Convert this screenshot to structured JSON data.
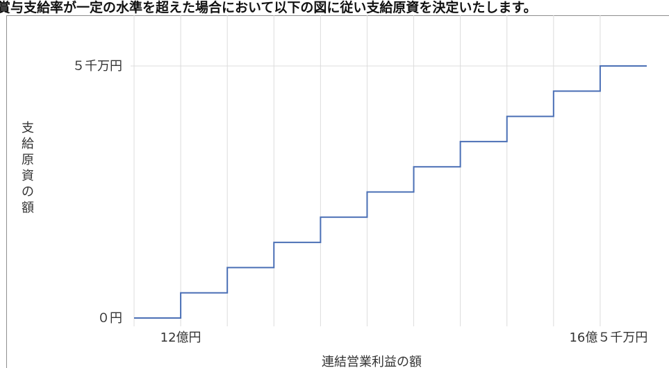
{
  "header_text": "賞与支給率が一定の水準を超えた場合において以下の図に従い支給原資を決定いたします。",
  "chart_data": {
    "type": "line",
    "step": true,
    "xlabel": "連結営業利益の額",
    "ylabel": "支給原資の額",
    "x_tick_labels": {
      "start": "12億円",
      "end": "16億５千万円"
    },
    "y_tick_labels": {
      "bottom": "０円",
      "top": "５千万円"
    },
    "x_range": [
      0,
      11
    ],
    "y_range": [
      0,
      10
    ],
    "series": [
      {
        "x": [
          0,
          1,
          2,
          3,
          4,
          5,
          6,
          7,
          8,
          9,
          10,
          11
        ],
        "y": [
          0,
          1,
          2,
          3,
          4,
          5,
          6,
          7,
          8,
          9,
          10,
          10
        ],
        "color": "#4a6fb5"
      }
    ],
    "grid": "vertical",
    "gridline_color": "#dcdcdc"
  }
}
